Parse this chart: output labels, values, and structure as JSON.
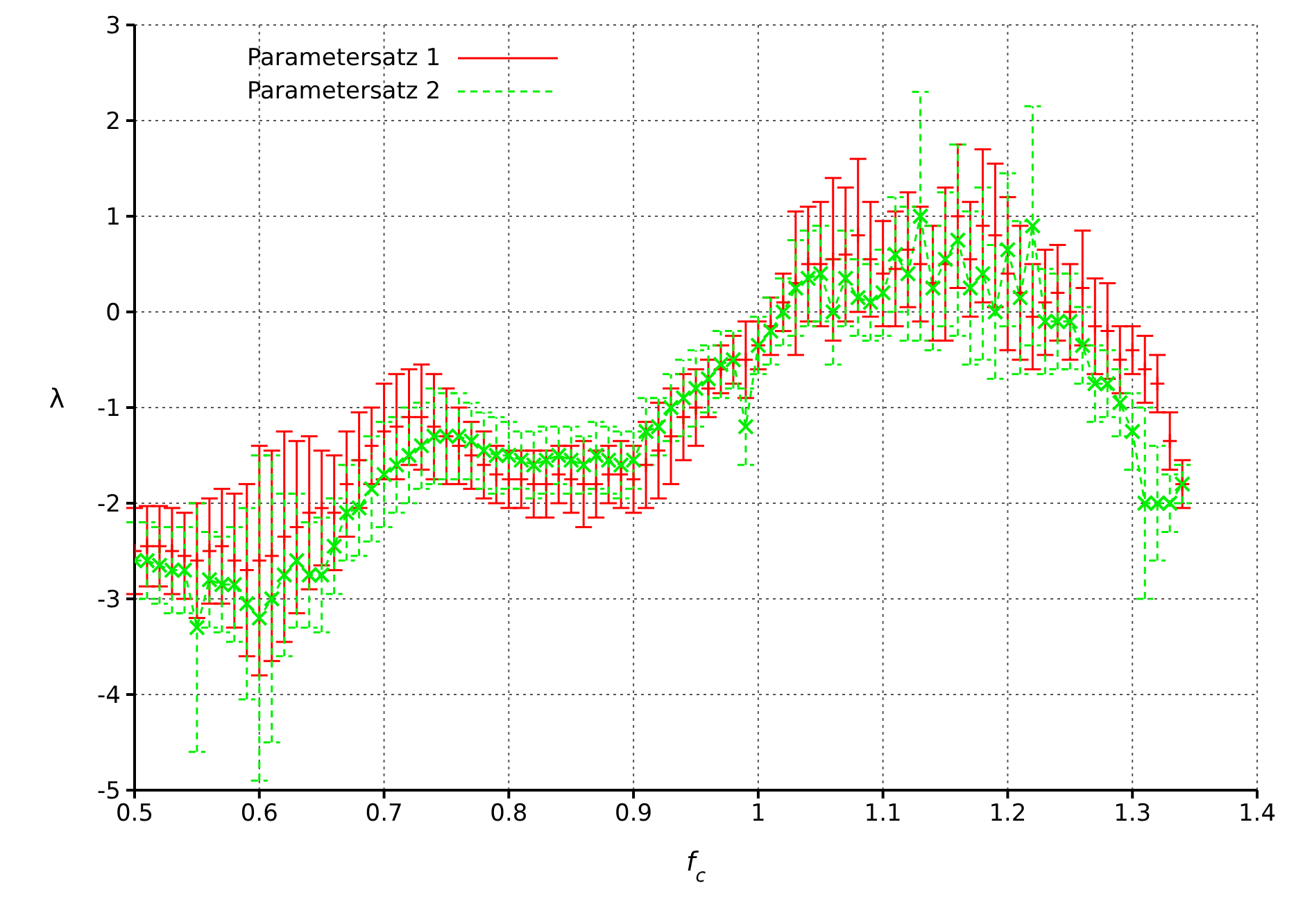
{
  "chart_data": {
    "type": "line",
    "xlabel": "f$_{c}$",
    "ylabel": "λ",
    "xlim": [
      0.5,
      1.4
    ],
    "xticks": [
      0.5,
      0.6,
      0.7,
      0.8,
      0.9,
      1,
      1.1,
      1.2,
      1.3,
      1.4
    ],
    "ylim": [
      -5,
      3
    ],
    "yticks": [
      -5,
      -4,
      -3,
      -2,
      -1,
      0,
      1,
      2,
      3
    ],
    "grid": true,
    "legend": "top left",
    "x": [
      0.5,
      0.51,
      0.52,
      0.53,
      0.54,
      0.55,
      0.56,
      0.57,
      0.58,
      0.59,
      0.6,
      0.61,
      0.62,
      0.63,
      0.64,
      0.65,
      0.66,
      0.67,
      0.68,
      0.69,
      0.7,
      0.71,
      0.72,
      0.73,
      0.74,
      0.75,
      0.76,
      0.77,
      0.78,
      0.79,
      0.8,
      0.81,
      0.82,
      0.83,
      0.84,
      0.85,
      0.86,
      0.87,
      0.88,
      0.89,
      0.9,
      0.91,
      0.92,
      0.93,
      0.94,
      0.95,
      0.96,
      0.97,
      0.98,
      0.99,
      1,
      1.01,
      1.02,
      1.03,
      1.04,
      1.05,
      1.06,
      1.07,
      1.08,
      1.09,
      1.1,
      1.11,
      1.12,
      1.13,
      1.14,
      1.15,
      1.16,
      1.17,
      1.18,
      1.19,
      1.2,
      1.21,
      1.22,
      1.23,
      1.24,
      1.25,
      1.26,
      1.27,
      1.28,
      1.29,
      1.3,
      1.31,
      1.32,
      1.33,
      1.34
    ],
    "series": [
      {
        "name": "Parametersatz 1",
        "type": "scatter",
        "marker": "cross",
        "line_style": "solid",
        "color": "#ff0000",
        "values": [
          -2.5,
          -2.45,
          -2.45,
          -2.5,
          -2.55,
          -2.6,
          -2.5,
          -2.45,
          -2.6,
          -2.7,
          -2.6,
          -2.55,
          -2.35,
          -2.25,
          -2.1,
          -2.05,
          -2.1,
          -1.8,
          -1.55,
          -1.4,
          -1.25,
          -1.2,
          -1.1,
          -1.1,
          -1.2,
          -1.3,
          -1.4,
          -1.5,
          -1.6,
          -1.7,
          -1.75,
          -1.75,
          -1.8,
          -1.8,
          -1.7,
          -1.75,
          -1.8,
          -1.8,
          -1.7,
          -1.7,
          -1.75,
          -1.6,
          -1.45,
          -1.3,
          -1.1,
          -1,
          -0.8,
          -0.6,
          -0.5,
          -0.5,
          -0.35,
          -0.15,
          0.1,
          0.3,
          0.5,
          0.5,
          0.55,
          0.6,
          0.8,
          0.55,
          0.4,
          0.45,
          0.65,
          0.5,
          0.3,
          0.5,
          1,
          0.55,
          0.9,
          0.8,
          0.4,
          0.2,
          -0.05,
          0.1,
          0.2,
          0,
          0.25,
          -0.15,
          -0.2,
          -0.5,
          -0.4,
          -0.6,
          -0.75,
          -1.35,
          -1.8
        ],
        "errors": [
          0.45,
          0.42,
          0.42,
          0.45,
          0.45,
          0.6,
          0.55,
          0.6,
          0.7,
          0.9,
          1.2,
          1.1,
          1.1,
          0.9,
          0.8,
          0.6,
          0.6,
          0.55,
          0.5,
          0.4,
          0.5,
          0.55,
          0.5,
          0.55,
          0.55,
          0.5,
          0.4,
          0.35,
          0.35,
          0.3,
          0.3,
          0.3,
          0.35,
          0.35,
          0.3,
          0.35,
          0.45,
          0.35,
          0.3,
          0.35,
          0.35,
          0.45,
          0.5,
          0.5,
          0.45,
          0.4,
          0.3,
          0.25,
          0.25,
          0.4,
          0.25,
          0.3,
          0.3,
          0.75,
          0.6,
          0.65,
          0.85,
          0.7,
          0.8,
          0.6,
          0.55,
          0.6,
          0.6,
          0.6,
          0.6,
          0.8,
          0.75,
          0.6,
          0.8,
          0.75,
          0.8,
          0.7,
          0.55,
          0.55,
          0.5,
          0.5,
          0.6,
          0.5,
          0.5,
          0.35,
          0.25,
          0.35,
          0.3,
          0.3,
          0.25
        ]
      },
      {
        "name": "Parametersatz 2",
        "marker": "cross",
        "line_style": "dashed",
        "color": "#00ee00",
        "values": [
          -2.6,
          -2.6,
          -2.65,
          -2.7,
          -2.7,
          -3.3,
          -2.8,
          -2.85,
          -2.85,
          -3.05,
          -3.2,
          -3,
          -2.75,
          -2.6,
          -2.75,
          -2.75,
          -2.45,
          -2.1,
          -2.05,
          -1.85,
          -1.7,
          -1.6,
          -1.5,
          -1.4,
          -1.3,
          -1.3,
          -1.3,
          -1.35,
          -1.45,
          -1.5,
          -1.5,
          -1.55,
          -1.6,
          -1.55,
          -1.5,
          -1.55,
          -1.6,
          -1.5,
          -1.55,
          -1.6,
          -1.55,
          -1.25,
          -1.2,
          -1,
          -0.9,
          -0.8,
          -0.7,
          -0.55,
          -0.5,
          -1.2,
          -0.35,
          -0.2,
          0,
          0.25,
          0.35,
          0.4,
          0,
          0.35,
          0.15,
          0.1,
          0.2,
          0.6,
          0.4,
          1,
          0.25,
          0.55,
          0.75,
          0.25,
          0.4,
          0,
          0.65,
          0.15,
          0.9,
          -0.1,
          -0.1,
          -0.1,
          -0.35,
          -0.75,
          -0.75,
          -0.95,
          -1.25,
          -2,
          -2,
          -2,
          -1.8
        ],
        "errors": [
          0.4,
          0.4,
          0.4,
          0.45,
          0.45,
          1.3,
          0.5,
          0.5,
          0.6,
          1,
          1.7,
          1.5,
          0.85,
          0.7,
          0.55,
          0.6,
          0.5,
          0.5,
          0.5,
          0.55,
          0.55,
          0.5,
          0.5,
          0.45,
          0.5,
          0.45,
          0.45,
          0.4,
          0.4,
          0.4,
          0.35,
          0.3,
          0.35,
          0.35,
          0.3,
          0.35,
          0.3,
          0.35,
          0.35,
          0.35,
          0.3,
          0.35,
          0.3,
          0.35,
          0.4,
          0.4,
          0.35,
          0.35,
          0.3,
          0.4,
          0.3,
          0.35,
          0.35,
          0.5,
          0.5,
          0.5,
          0.55,
          0.5,
          0.4,
          0.4,
          0.45,
          0.6,
          0.7,
          1.3,
          0.65,
          0.7,
          1,
          0.8,
          0.9,
          0.7,
          0.8,
          0.8,
          1.25,
          0.55,
          0.5,
          0.5,
          0.4,
          0.4,
          0.35,
          0.35,
          0.4,
          1,
          0.6,
          0.3,
          0.2
        ]
      }
    ]
  }
}
